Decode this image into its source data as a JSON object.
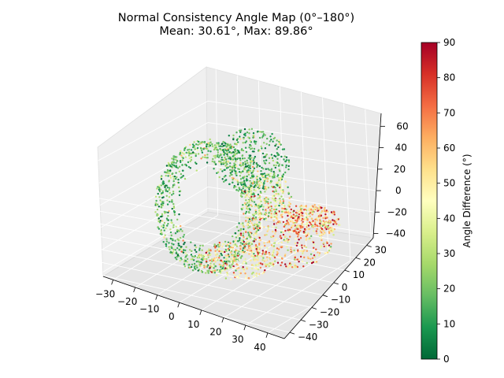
{
  "chart_data": {
    "type": "scatter",
    "projection": "3d",
    "title": "Normal Consistency Angle Map (0°–180°)",
    "subtitle": "Mean: 30.61°, Max: 89.86°",
    "x_axis": {
      "ticks": [
        "−30",
        "−20",
        "−10",
        "0",
        "10",
        "20",
        "30",
        "40"
      ],
      "range": [
        -35,
        45
      ]
    },
    "y_axis": {
      "ticks": [
        "−40",
        "−30",
        "−20",
        "−10",
        "0",
        "10",
        "20",
        "30"
      ],
      "range": [
        -45,
        35
      ]
    },
    "z_axis": {
      "ticks": [
        "−40",
        "−20",
        "0",
        "20",
        "40",
        "60"
      ],
      "range": [
        -50,
        65
      ]
    },
    "colorbar": {
      "label": "Angle Difference (°)",
      "ticks": [
        "0",
        "10",
        "20",
        "30",
        "40",
        "50",
        "60",
        "70",
        "80",
        "90"
      ],
      "range": [
        0,
        90
      ],
      "colormap": [
        "#006837",
        "#1a9850",
        "#66bd63",
        "#a6d96a",
        "#d9ef8b",
        "#ffffbf",
        "#fee08b",
        "#fdae61",
        "#f46d43",
        "#d73027",
        "#a50026"
      ]
    },
    "point_cloud_description": "dense surface point cloud, colored by angle difference",
    "grid": true
  }
}
